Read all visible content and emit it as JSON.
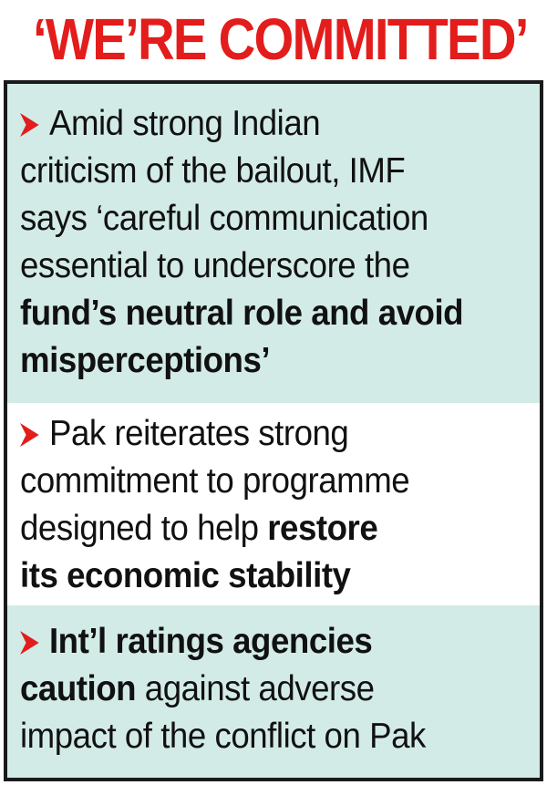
{
  "headline": "‘WE’RE COMMITTED’",
  "colors": {
    "headline": "#e31c1c",
    "bullet": "#e31c1c",
    "panel_shaded": "#d3ebe7",
    "panel_plain": "#ffffff",
    "border": "#1a1a1a"
  },
  "bullet_icon": "red-chevron-arrow",
  "items": [
    {
      "plain": "Amid strong Indian criticism of the bailout, IMF says ‘careful communication essential to underscore the",
      "bold": "fund’s neutral role and avoid misperceptions’"
    },
    {
      "plain": "Pak reiterates strong commitment to programme designed to help",
      "bold": "restore its economic stability"
    },
    {
      "bold": "Int’l ratings agencies caution",
      "plain": "against adverse impact of the conflict on Pak"
    }
  ],
  "lines": {
    "item1": [
      "Amid strong Indian",
      "criticism of the bailout, IMF",
      "says ‘careful communication",
      "essential to underscore the",
      "fund’s neutral role and avoid",
      "misperceptions’"
    ],
    "item2": [
      "Pak reiterates strong",
      "commitment to programme",
      "designed to help ",
      "restore",
      "its economic stability"
    ],
    "item3": [
      "Int’l ratings agencies",
      "caution",
      " against adverse",
      "impact of the conflict on Pak"
    ]
  }
}
